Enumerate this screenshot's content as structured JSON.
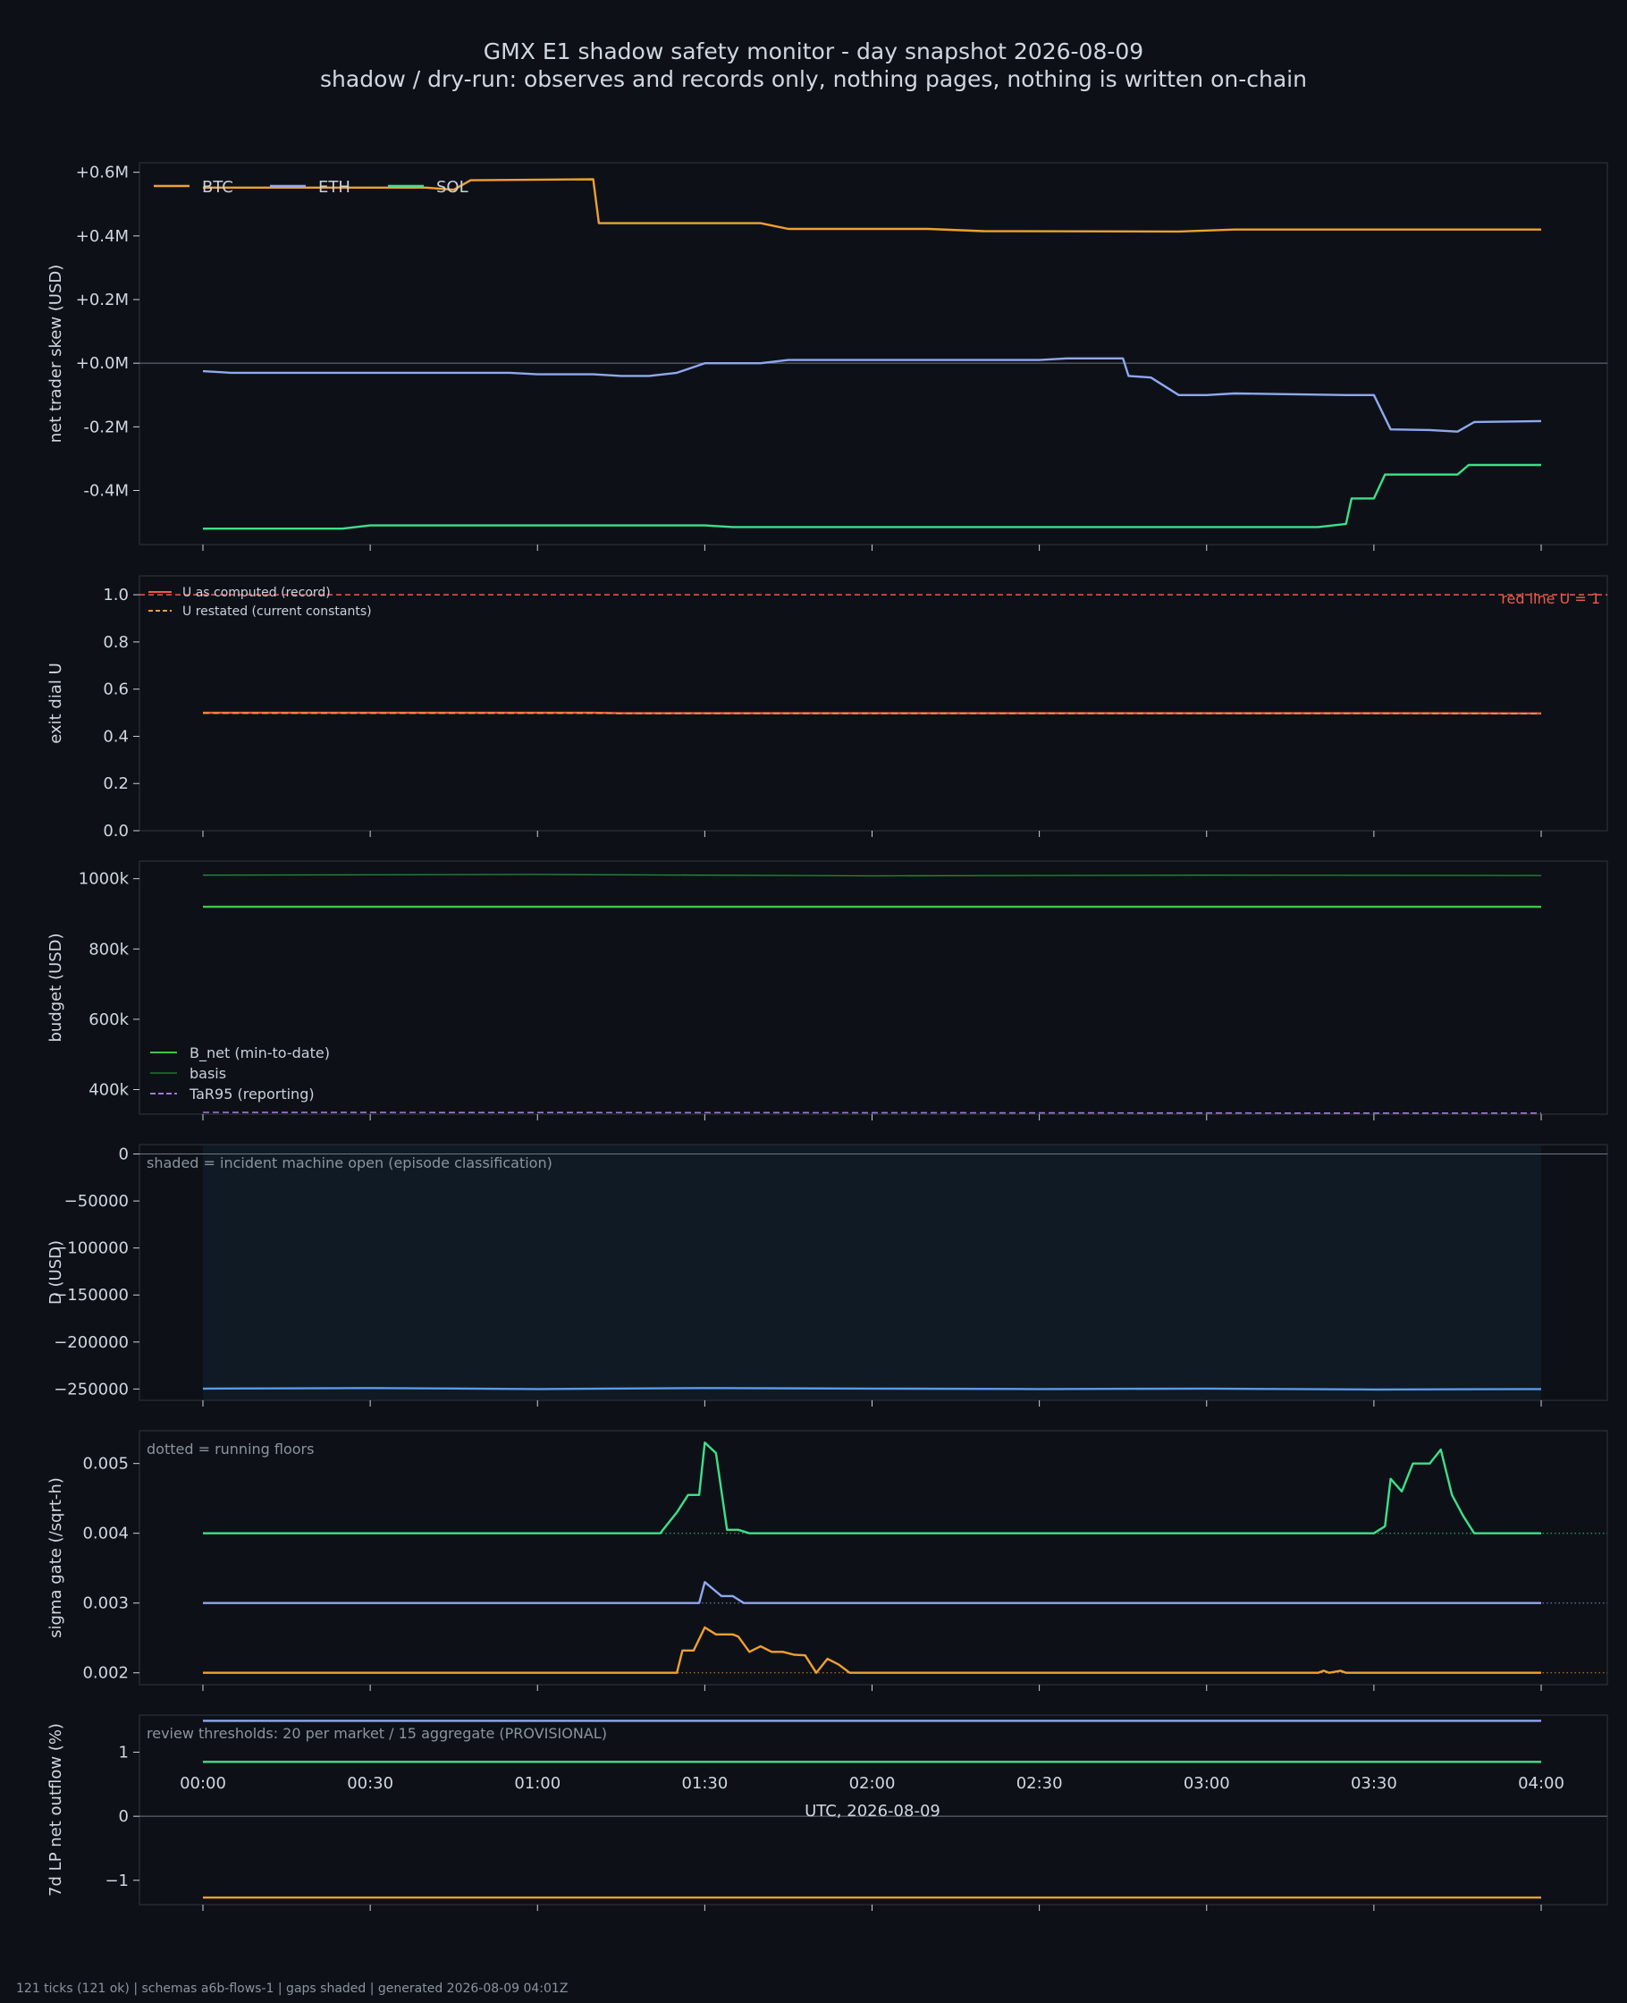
{
  "title_line1": "GMX E1 shadow safety monitor - day snapshot 2026-08-09",
  "title_line2": "shadow / dry-run: observes and records only, nothing pages, nothing is written on-chain",
  "footer": "121 ticks (121 ok) | schemas a6b-flows-1 | gaps shaded | generated 2026-08-09 04:01Z",
  "colors": {
    "btc": "#f0a030",
    "eth": "#8fa8f0",
    "sol": "#3ee08a",
    "u_record": "#f05a4a",
    "u_restated": "#e0a040",
    "b_net": "#3ec84a",
    "basis": "#2a8a3a",
    "tar95": "#a07ad0",
    "d": "#5a9ae8",
    "zero": "#6e7681"
  },
  "chart_data": {
    "type": "line",
    "xlabel": "UTC, 2026-08-09",
    "x_ticks": [
      "00:00",
      "00:30",
      "01:00",
      "01:30",
      "02:00",
      "02:30",
      "03:00",
      "03:30",
      "04:00"
    ],
    "xlim": [
      "00:00",
      "04:00"
    ],
    "panels": [
      {
        "id": "skew",
        "ylabel": "net trader skew (USD)",
        "ylim": [
          -0.57,
          0.63
        ],
        "y_ticks": [
          "+0.6M",
          "+0.4M",
          "+0.2M",
          "+0.0M",
          "-0.2M",
          "-0.4M"
        ],
        "y_tick_values": [
          0.6,
          0.4,
          0.2,
          0.0,
          -0.2,
          -0.4
        ],
        "zero_line": 0,
        "legend": [
          "BTC",
          "ETH",
          "SOL"
        ],
        "series": [
          {
            "name": "BTC",
            "color_key": "btc",
            "points": [
              [
                "00:00",
                0.552
              ],
              [
                "00:40",
                0.552
              ],
              [
                "00:45",
                0.545
              ],
              [
                "00:48",
                0.575
              ],
              [
                "01:10",
                0.578
              ],
              [
                "01:11",
                0.44
              ],
              [
                "01:40",
                0.44
              ],
              [
                "01:45",
                0.422
              ],
              [
                "02:10",
                0.422
              ],
              [
                "02:20",
                0.415
              ],
              [
                "02:55",
                0.414
              ],
              [
                "03:05",
                0.42
              ],
              [
                "04:00",
                0.42
              ]
            ]
          },
          {
            "name": "ETH",
            "color_key": "eth",
            "points": [
              [
                "00:00",
                -0.025
              ],
              [
                "00:05",
                -0.03
              ],
              [
                "00:55",
                -0.03
              ],
              [
                "01:00",
                -0.035
              ],
              [
                "01:10",
                -0.035
              ],
              [
                "01:15",
                -0.04
              ],
              [
                "01:20",
                -0.04
              ],
              [
                "01:25",
                -0.03
              ],
              [
                "01:30",
                0.0
              ],
              [
                "01:40",
                0.0
              ],
              [
                "01:45",
                0.01
              ],
              [
                "02:30",
                0.01
              ],
              [
                "02:35",
                0.015
              ],
              [
                "02:45",
                0.015
              ],
              [
                "02:46",
                -0.04
              ],
              [
                "02:50",
                -0.045
              ],
              [
                "02:55",
                -0.1
              ],
              [
                "03:00",
                -0.1
              ],
              [
                "03:05",
                -0.095
              ],
              [
                "03:25",
                -0.1
              ],
              [
                "03:30",
                -0.1
              ],
              [
                "03:33",
                -0.208
              ],
              [
                "03:40",
                -0.21
              ],
              [
                "03:45",
                -0.215
              ],
              [
                "03:48",
                -0.185
              ],
              [
                "04:00",
                -0.182
              ]
            ]
          },
          {
            "name": "SOL",
            "color_key": "sol",
            "points": [
              [
                "00:00",
                -0.52
              ],
              [
                "00:25",
                -0.52
              ],
              [
                "00:30",
                -0.51
              ],
              [
                "01:30",
                -0.51
              ],
              [
                "01:35",
                -0.515
              ],
              [
                "03:20",
                -0.515
              ],
              [
                "03:25",
                -0.505
              ],
              [
                "03:26",
                -0.425
              ],
              [
                "03:30",
                -0.425
              ],
              [
                "03:32",
                -0.35
              ],
              [
                "03:45",
                -0.35
              ],
              [
                "03:47",
                -0.32
              ],
              [
                "04:00",
                -0.32
              ]
            ]
          }
        ]
      },
      {
        "id": "exit",
        "ylabel": "exit dial U",
        "ylim": [
          0.0,
          1.08
        ],
        "y_ticks": [
          "1.0",
          "0.8",
          "0.6",
          "0.4",
          "0.2",
          "0.0"
        ],
        "y_tick_values": [
          1.0,
          0.8,
          0.6,
          0.4,
          0.2,
          0.0
        ],
        "legend": [
          "U as computed (record)",
          "U restated (current constants)"
        ],
        "annotation": "red line U = 1",
        "redline": 1.0,
        "series": [
          {
            "name": "U as computed (record)",
            "color_key": "u_record",
            "points": [
              [
                "00:00",
                0.5
              ],
              [
                "01:10",
                0.5
              ],
              [
                "01:15",
                0.498
              ],
              [
                "03:30",
                0.498
              ],
              [
                "04:00",
                0.497
              ]
            ]
          },
          {
            "name": "U restated (current constants)",
            "color_key": "u_restated",
            "points": [
              [
                "00:00",
                0.498
              ],
              [
                "01:10",
                0.498
              ],
              [
                "01:15",
                0.497
              ],
              [
                "03:30",
                0.497
              ],
              [
                "04:00",
                0.496
              ]
            ]
          }
        ]
      },
      {
        "id": "budget",
        "ylabel": "budget (USD)",
        "ylim": [
          330000,
          1050000
        ],
        "y_ticks": [
          "1000k",
          "800k",
          "600k",
          "400k"
        ],
        "y_tick_values": [
          1000000,
          800000,
          600000,
          400000
        ],
        "legend": [
          "B_net (min-to-date)",
          "basis",
          "TaR95 (reporting)"
        ],
        "series": [
          {
            "name": "B_net (min-to-date)",
            "color_key": "b_net",
            "points": [
              [
                "00:00",
                920000
              ],
              [
                "04:00",
                920000
              ]
            ]
          },
          {
            "name": "basis",
            "color_key": "basis",
            "points": [
              [
                "00:00",
                1010000
              ],
              [
                "01:00",
                1012000
              ],
              [
                "02:00",
                1008000
              ],
              [
                "03:00",
                1010000
              ],
              [
                "04:00",
                1009000
              ]
            ]
          },
          {
            "name": "TaR95 (reporting)",
            "color_key": "tar95",
            "points": [
              [
                "00:00",
                335000
              ],
              [
                "02:00",
                334000
              ],
              [
                "03:20",
                333000
              ],
              [
                "04:00",
                333000
              ]
            ]
          }
        ]
      },
      {
        "id": "drawdown",
        "ylabel": "D (USD)",
        "ylim": [
          -262000,
          10000
        ],
        "y_ticks": [
          "0",
          "−50000",
          "−100000",
          "−150000",
          "−200000",
          "−250000"
        ],
        "y_tick_values": [
          0,
          -50000,
          -100000,
          -150000,
          -200000,
          -250000
        ],
        "zero_line": 0,
        "annotation": "shaded = incident machine open (episode classification)",
        "shade": [
          "00:00",
          "04:00"
        ],
        "series": [
          {
            "name": "D",
            "color_key": "d",
            "points": [
              [
                "00:00",
                -249500
              ],
              [
                "00:30",
                -249000
              ],
              [
                "01:00",
                -250000
              ],
              [
                "01:30",
                -249000
              ],
              [
                "02:00",
                -249500
              ],
              [
                "02:30",
                -250000
              ],
              [
                "03:00",
                -249500
              ],
              [
                "03:30",
                -250500
              ],
              [
                "04:00",
                -250000
              ]
            ]
          }
        ]
      },
      {
        "id": "sigma",
        "ylabel": "sigma gate (/sqrt-h)",
        "ylim": [
          0.00183,
          0.00547
        ],
        "y_ticks": [
          "0.005",
          "0.004",
          "0.003",
          "0.002"
        ],
        "y_tick_values": [
          0.005,
          0.004,
          0.003,
          0.002
        ],
        "annotation": "dotted = running floors",
        "floors": [
          {
            "value": 0.004,
            "color_key": "sol"
          },
          {
            "value": 0.003,
            "color_key": "eth"
          },
          {
            "value": 0.002,
            "color_key": "btc"
          }
        ],
        "series": [
          {
            "name": "SOL",
            "color_key": "sol",
            "points": [
              [
                "00:00",
                0.004
              ],
              [
                "01:22",
                0.004
              ],
              [
                "01:25",
                0.0043
              ],
              [
                "01:27",
                0.00455
              ],
              [
                "01:29",
                0.00455
              ],
              [
                "01:30",
                0.0053
              ],
              [
                "01:32",
                0.00515
              ],
              [
                "01:34",
                0.00405
              ],
              [
                "01:36",
                0.00405
              ],
              [
                "01:38",
                0.004
              ],
              [
                "03:30",
                0.004
              ],
              [
                "03:32",
                0.0041
              ],
              [
                "03:33",
                0.00478
              ],
              [
                "03:35",
                0.0046
              ],
              [
                "03:37",
                0.005
              ],
              [
                "03:40",
                0.005
              ],
              [
                "03:42",
                0.0052
              ],
              [
                "03:44",
                0.00455
              ],
              [
                "03:46",
                0.00425
              ],
              [
                "03:48",
                0.004
              ],
              [
                "04:00",
                0.004
              ]
            ]
          },
          {
            "name": "ETH",
            "color_key": "eth",
            "points": [
              [
                "00:00",
                0.003
              ],
              [
                "01:29",
                0.003
              ],
              [
                "01:30",
                0.0033
              ],
              [
                "01:33",
                0.0031
              ],
              [
                "01:35",
                0.0031
              ],
              [
                "01:37",
                0.003
              ],
              [
                "04:00",
                0.003
              ]
            ]
          },
          {
            "name": "BTC",
            "color_key": "btc",
            "points": [
              [
                "00:00",
                0.002
              ],
              [
                "01:25",
                0.002
              ],
              [
                "01:26",
                0.00232
              ],
              [
                "01:28",
                0.00232
              ],
              [
                "01:30",
                0.00265
              ],
              [
                "01:32",
                0.00255
              ],
              [
                "01:35",
                0.00255
              ],
              [
                "01:36",
                0.00252
              ],
              [
                "01:38",
                0.0023
              ],
              [
                "01:40",
                0.00238
              ],
              [
                "01:42",
                0.0023
              ],
              [
                "01:44",
                0.0023
              ],
              [
                "01:46",
                0.00226
              ],
              [
                "01:48",
                0.00225
              ],
              [
                "01:50",
                0.002
              ],
              [
                "01:52",
                0.0022
              ],
              [
                "01:54",
                0.00212
              ],
              [
                "01:56",
                0.002
              ],
              [
                "03:20",
                0.002
              ],
              [
                "03:21",
                0.00203
              ],
              [
                "03:22",
                0.002
              ],
              [
                "03:24",
                0.00203
              ],
              [
                "03:25",
                0.002
              ],
              [
                "04:00",
                0.002
              ]
            ]
          }
        ]
      },
      {
        "id": "lp",
        "ylabel": "7d LP net outflow (%)",
        "ylim": [
          -1.38,
          1.58
        ],
        "y_ticks": [
          "1",
          "0",
          "−1"
        ],
        "y_tick_values": [
          1,
          0,
          -1
        ],
        "zero_line": 0,
        "annotation": "review thresholds: 20 per market / 15 aggregate (PROVISIONAL)",
        "series": [
          {
            "name": "ETH",
            "color_key": "eth",
            "points": [
              [
                "00:00",
                1.49
              ],
              [
                "04:00",
                1.49
              ]
            ]
          },
          {
            "name": "SOL",
            "color_key": "sol",
            "points": [
              [
                "00:00",
                0.85
              ],
              [
                "04:00",
                0.85
              ]
            ]
          },
          {
            "name": "BTC",
            "color_key": "btc",
            "points": [
              [
                "00:00",
                -1.27
              ],
              [
                "04:00",
                -1.27
              ]
            ]
          }
        ]
      }
    ]
  }
}
